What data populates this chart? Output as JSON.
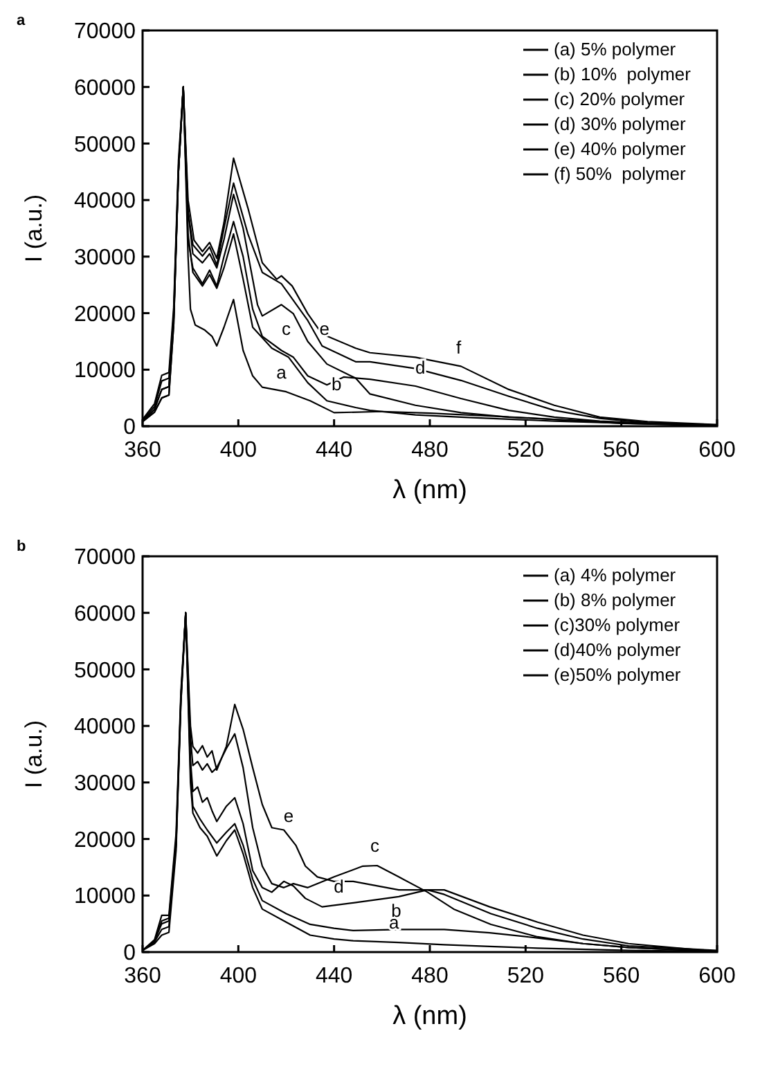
{
  "chart_data": [
    {
      "type": "line",
      "title": "a",
      "xlabel": "λ (nm)",
      "ylabel": "I (a.u.)",
      "xlim": [
        360,
        600
      ],
      "xticks": [
        360,
        400,
        440,
        480,
        520,
        560,
        600
      ],
      "ylim": [
        0,
        70000
      ],
      "yticks": [
        0,
        10000,
        20000,
        30000,
        40000,
        50000,
        60000,
        70000
      ],
      "grid": false,
      "legend": "top right",
      "marker": "none",
      "line_style": "solid",
      "series": [
        {
          "name": "(a) 5% polymer",
          "color": "#000000",
          "x": [
            360,
            365,
            368,
            371,
            373,
            375,
            377,
            379,
            380,
            382,
            386,
            389,
            391,
            394,
            398,
            402,
            406,
            410,
            420,
            430,
            440,
            460,
            480,
            520,
            560,
            600
          ],
          "values": [
            800,
            2500,
            5000,
            5500,
            18000,
            45000,
            60000,
            30000,
            20700,
            17900,
            17000,
            15900,
            14200,
            17500,
            22400,
            13400,
            8900,
            6900,
            6100,
            4500,
            2400,
            2600,
            2300,
            1500,
            500,
            100
          ]
        },
        {
          "name": "(b) 10%  polymer",
          "color": "#000000",
          "x": [
            360,
            365,
            368,
            371,
            373,
            375,
            377,
            379,
            381,
            385,
            388,
            391,
            394,
            398,
            402,
            406,
            414,
            421,
            429,
            437,
            449,
            455,
            474,
            493,
            532,
            571,
            600
          ],
          "values": [
            800,
            2500,
            5000,
            5500,
            18000,
            45000,
            60000,
            34000,
            27200,
            24800,
            26800,
            24400,
            28000,
            34000,
            26000,
            17500,
            13800,
            12200,
            7700,
            4500,
            3300,
            2800,
            2000,
            1600,
            900,
            400,
            100
          ]
        },
        {
          "name": "(c) 20% polymer",
          "color": "#000000",
          "x": [
            360,
            365,
            368,
            371,
            373,
            375,
            377,
            379,
            381,
            385,
            388,
            391,
            394,
            398,
            402,
            408,
            410,
            418,
            423,
            429,
            437,
            449,
            455,
            474,
            493,
            513,
            551,
            600
          ],
          "values": [
            900,
            3000,
            6500,
            7000,
            19000,
            45000,
            60000,
            38000,
            30500,
            28900,
            30500,
            28000,
            33000,
            41000,
            35000,
            21500,
            19500,
            21500,
            19900,
            15000,
            11000,
            8500,
            5700,
            3700,
            2400,
            1600,
            800,
            100
          ]
        },
        {
          "name": "(d) 30% polymer",
          "color": "#000000",
          "x": [
            360,
            365,
            368,
            371,
            373,
            375,
            377,
            379,
            381,
            385,
            388,
            391,
            394,
            398,
            402,
            406,
            410,
            418,
            423,
            429,
            437,
            444,
            455,
            474,
            493,
            513,
            532,
            551,
            571,
            600
          ],
          "values": [
            900,
            3000,
            6500,
            7000,
            19000,
            45000,
            60000,
            33000,
            28000,
            25200,
            27600,
            24800,
            30000,
            36200,
            30000,
            20700,
            15900,
            13400,
            12200,
            8900,
            7300,
            8700,
            8300,
            7100,
            4900,
            2800,
            1600,
            900,
            500,
            100
          ]
        },
        {
          "name": "(e) 40% polymer",
          "color": "#000000",
          "x": [
            360,
            365,
            368,
            371,
            373,
            375,
            377,
            379,
            381,
            385,
            388,
            391,
            394,
            398,
            404,
            410,
            418,
            429,
            435,
            449,
            455,
            474,
            493,
            513,
            532,
            551,
            571,
            600
          ],
          "values": [
            1000,
            3500,
            8000,
            8500,
            20000,
            46000,
            60000,
            38000,
            32100,
            30100,
            31700,
            28500,
            35000,
            43000,
            34000,
            27200,
            25200,
            18700,
            14200,
            11400,
            11400,
            10200,
            8100,
            5300,
            2800,
            1400,
            600,
            200
          ]
        },
        {
          "name": "(f) 50%  polymer",
          "color": "#000000",
          "x": [
            360,
            365,
            368,
            371,
            373,
            375,
            377,
            379,
            381.5,
            385,
            388,
            391,
            394,
            398,
            404,
            410,
            416,
            418,
            422.5,
            429,
            435,
            449,
            455,
            474,
            493,
            513,
            532,
            551,
            571,
            600
          ],
          "values": [
            1200,
            4000,
            9000,
            9500,
            21000,
            47000,
            60000,
            40000,
            32900,
            30900,
            32500,
            29700,
            36000,
            47400,
            38600,
            28900,
            26000,
            26600,
            24800,
            19900,
            16300,
            13800,
            13000,
            12200,
            10600,
            6500,
            3700,
            1600,
            800,
            300
          ]
        }
      ],
      "annotations": [
        "a",
        "b",
        "c",
        "d",
        "e",
        "f"
      ]
    },
    {
      "type": "line",
      "title": "b",
      "xlabel": "λ (nm)",
      "ylabel": "I (a.u.)",
      "xlim": [
        360,
        600
      ],
      "xticks": [
        360,
        400,
        440,
        480,
        520,
        560,
        600
      ],
      "ylim": [
        0,
        70000
      ],
      "yticks": [
        0,
        10000,
        20000,
        30000,
        40000,
        50000,
        60000,
        70000
      ],
      "grid": false,
      "legend": "top right",
      "marker": "none",
      "line_style": "solid",
      "series": [
        {
          "name": "(a) 4% polymer",
          "color": "#000000",
          "x": [
            360,
            365,
            368,
            371,
            374,
            376,
            378,
            380,
            381,
            384,
            387,
            391,
            395,
            398.5,
            402,
            406,
            410,
            420,
            430,
            440,
            448,
            467,
            486,
            505,
            525,
            563,
            600
          ],
          "values": [
            300,
            1500,
            3000,
            3500,
            18000,
            44000,
            60000,
            30000,
            24600,
            22000,
            20500,
            17000,
            19700,
            21600,
            17400,
            11400,
            7600,
            5300,
            3000,
            2300,
            2000,
            1700,
            1300,
            1000,
            700,
            300,
            100
          ]
        },
        {
          "name": "(b) 8% polymer",
          "color": "#000000",
          "x": [
            360,
            365,
            368,
            371,
            374,
            376,
            378,
            380,
            381,
            384,
            387,
            391,
            395,
            398.5,
            402,
            406,
            410,
            420,
            430,
            440,
            448,
            467,
            486,
            505,
            525,
            544,
            563,
            600
          ],
          "values": [
            300,
            1800,
            4000,
            4500,
            19000,
            44000,
            60000,
            32000,
            25800,
            23500,
            21600,
            19300,
            21200,
            22700,
            18900,
            12900,
            9100,
            6800,
            4900,
            4200,
            3800,
            4000,
            4000,
            3400,
            2500,
            1500,
            800,
            100
          ]
        },
        {
          "name": "(c)30% polymer",
          "color": "#000000",
          "x": [
            360,
            365,
            368,
            371,
            374,
            376,
            378,
            380,
            381,
            383,
            385,
            387,
            389,
            391,
            395,
            398.5,
            402,
            406,
            410,
            414,
            419,
            423,
            429,
            440,
            452,
            458,
            467,
            479,
            490,
            505.5,
            525,
            544,
            563,
            600
          ],
          "values": [
            300,
            2000,
            5500,
            6000,
            20000,
            45000,
            60000,
            38000,
            33000,
            33700,
            32200,
            33300,
            31800,
            32600,
            36000,
            38600,
            32600,
            22000,
            15200,
            12100,
            11400,
            12100,
            11400,
            13300,
            15200,
            15300,
            13300,
            10600,
            7600,
            4900,
            2700,
            1500,
            800,
            100
          ]
        },
        {
          "name": "(d)40% polymer",
          "color": "#000000",
          "x": [
            360,
            365,
            368,
            371,
            374,
            376,
            378,
            380,
            381,
            383,
            385,
            387,
            389,
            391,
            395,
            398.5,
            402,
            406,
            410,
            414,
            419,
            423,
            428,
            435,
            448,
            467,
            479,
            486,
            505,
            525,
            544,
            563,
            600
          ],
          "values": [
            300,
            2000,
            5000,
            5500,
            19000,
            45000,
            60000,
            34000,
            28400,
            29200,
            26500,
            27300,
            25000,
            23100,
            25800,
            27300,
            22700,
            14400,
            11400,
            10600,
            12500,
            11700,
            9500,
            8000,
            8700,
            9800,
            11000,
            11000,
            8000,
            5300,
            3000,
            1500,
            100
          ]
        },
        {
          "name": "(e)50% polymer",
          "color": "#000000",
          "x": [
            360,
            365,
            368,
            371,
            374,
            376,
            378,
            380,
            381,
            383,
            385,
            387,
            389,
            391,
            395,
            398.5,
            402,
            406,
            410,
            414,
            419,
            424,
            428,
            433,
            440,
            448,
            467,
            479,
            486,
            505.5,
            525,
            544,
            563,
            600
          ],
          "values": [
            300,
            2200,
            6500,
            6500,
            21000,
            46000,
            60000,
            40000,
            36400,
            35200,
            36500,
            34500,
            35600,
            32200,
            36400,
            43800,
            39400,
            32600,
            26100,
            22000,
            21600,
            18900,
            15200,
            13300,
            12500,
            12500,
            11000,
            11000,
            10200,
            6800,
            4200,
            2300,
            1100,
            300
          ]
        }
      ],
      "annotations": [
        "a",
        "b",
        "c",
        "d",
        "e"
      ]
    }
  ]
}
